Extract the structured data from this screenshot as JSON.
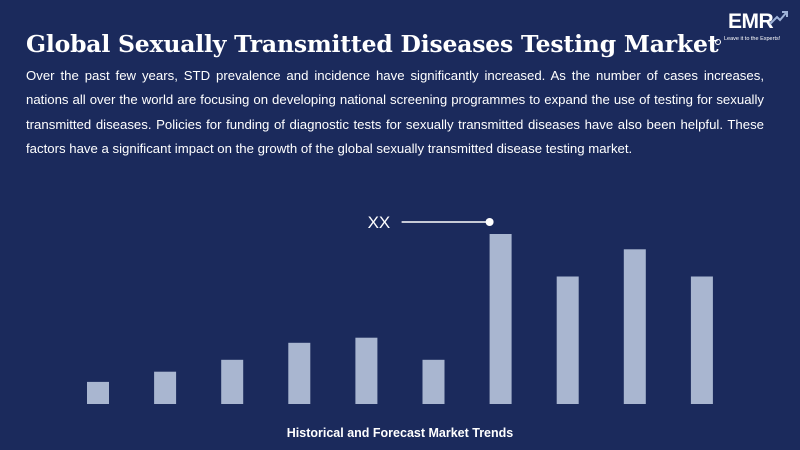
{
  "header": {
    "title": "Global Sexually Transmitted Diseases Testing Market",
    "logo_text": "EMR",
    "logo_tagline": "Leave it to the Experts!"
  },
  "description": "Over the past few years, STD prevalence and incidence have significantly increased. As the number of cases increases, nations all over the world are focusing on developing national screening programmes to expand the use of testing for sexually transmitted diseases. Policies for funding of diagnostic tests for sexually transmitted diseases have also been helpful. These factors have a significant impact on the growth of the global sexually transmitted disease testing market.",
  "colors": {
    "background": "#1b2a5c",
    "bar": "#a9b6d0",
    "text": "#ffffff"
  },
  "chart_data": {
    "type": "bar",
    "title": "",
    "xlabel": "Historical and Forecast Market Trends",
    "ylabel": "",
    "annotation": "XX",
    "annotated_index": 6,
    "values": [
      13,
      19,
      26,
      36,
      39,
      26,
      100,
      75,
      91,
      75
    ],
    "ylim": [
      0,
      100
    ],
    "grid": false,
    "legend": "none"
  }
}
